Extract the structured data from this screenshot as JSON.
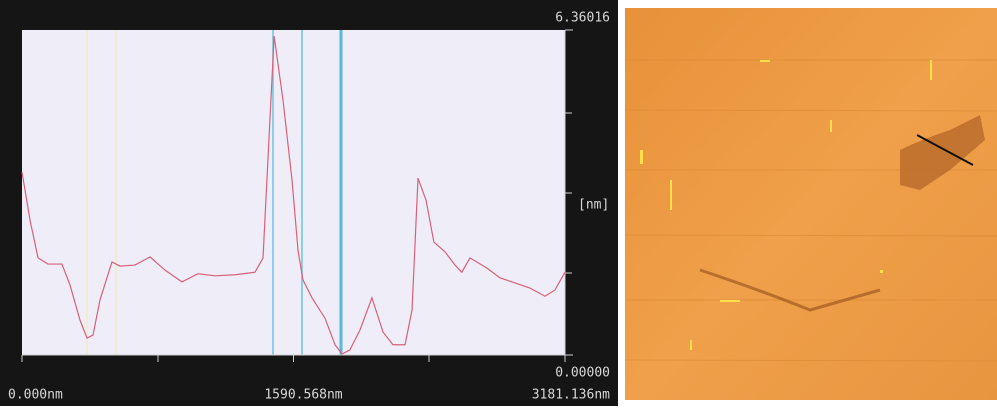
{
  "chart_data": {
    "type": "line",
    "x": [
      0,
      47,
      94,
      152,
      234,
      281,
      340,
      381,
      416,
      457,
      527,
      574,
      662,
      750,
      838,
      937,
      1031,
      1131,
      1248,
      1365,
      1412,
      1477,
      1529,
      1582,
      1617,
      1646,
      1699,
      1775,
      1834,
      1875,
      1921,
      1980,
      2050,
      2115,
      2173,
      2244,
      2285,
      2320,
      2367,
      2413,
      2478,
      2537,
      2577,
      2624,
      2665,
      2724,
      2800,
      2888,
      2976,
      3064,
      3122,
      3181
    ],
    "series": [
      {
        "color": "#d9607a",
        "values": [
          3.58,
          2.64,
          1.9,
          1.78,
          1.78,
          1.37,
          0.68,
          0.33,
          0.39,
          1.08,
          1.82,
          1.74,
          1.76,
          1.92,
          1.66,
          1.43,
          1.59,
          1.55,
          1.57,
          1.62,
          1.9,
          6.24,
          4.99,
          3.42,
          2.05,
          1.47,
          1.12,
          0.72,
          0.2,
          0.02,
          0.1,
          0.49,
          1.12,
          0.45,
          0.2,
          0.2,
          0.88,
          3.46,
          3.03,
          2.21,
          2.02,
          1.76,
          1.62,
          1.9,
          1.82,
          1.7,
          1.51,
          1.41,
          1.31,
          1.15,
          1.27,
          1.62
        ]
      }
    ],
    "xlim": [
      0,
      3181.136
    ],
    "xticks": [
      {
        "value": 0,
        "label": "0.000nm"
      },
      {
        "value": 1590.568,
        "label": "1590.568nm"
      },
      {
        "value": 3181.136,
        "label": "3181.136nm"
      }
    ],
    "ylim": [
      0,
      6.36016
    ],
    "yticks": [
      {
        "value": 0,
        "label": "0.00000"
      },
      {
        "value": 6.36016,
        "label": "6.36016"
      }
    ],
    "ylabel": "[nm]"
  }
}
